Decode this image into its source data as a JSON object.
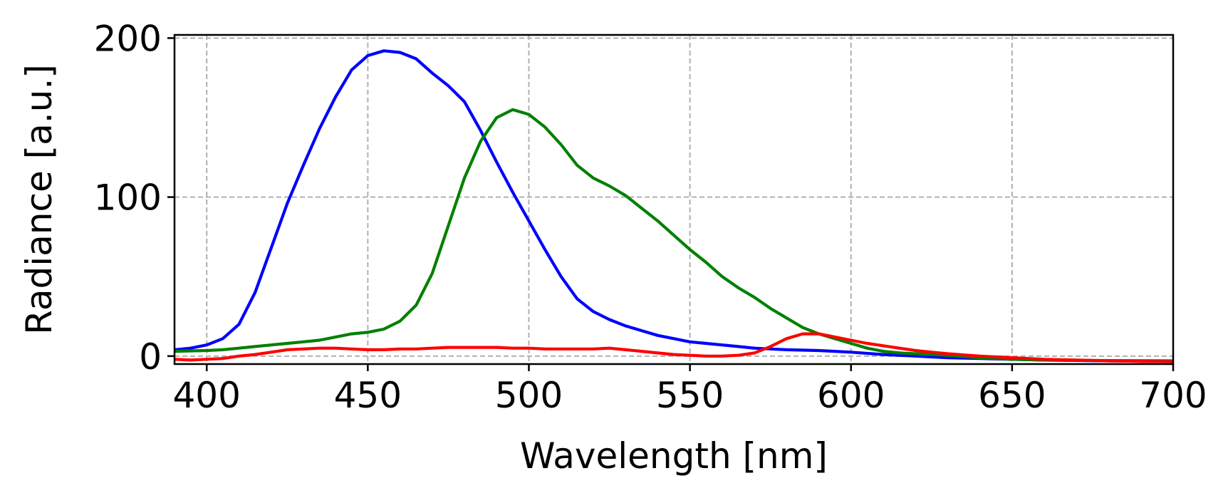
{
  "chart_data": {
    "type": "line",
    "title": "",
    "xlabel": "Wavelength [nm]",
    "ylabel": "Radiance [a.u.]",
    "xlim": [
      390,
      700
    ],
    "ylim": [
      -5,
      202
    ],
    "xticks": [
      400,
      450,
      500,
      550,
      600,
      650,
      700
    ],
    "yticks": [
      0,
      100,
      200
    ],
    "grid": true,
    "legend": "none",
    "series": [
      {
        "color": "#0000ff",
        "points": [
          [
            390,
            4
          ],
          [
            395,
            5
          ],
          [
            400,
            7
          ],
          [
            405,
            11
          ],
          [
            410,
            20
          ],
          [
            415,
            40
          ],
          [
            420,
            68
          ],
          [
            425,
            96
          ],
          [
            430,
            120
          ],
          [
            435,
            143
          ],
          [
            440,
            163
          ],
          [
            445,
            180
          ],
          [
            450,
            189
          ],
          [
            455,
            192
          ],
          [
            460,
            191
          ],
          [
            465,
            187
          ],
          [
            470,
            178
          ],
          [
            475,
            170
          ],
          [
            480,
            160
          ],
          [
            485,
            142
          ],
          [
            490,
            122
          ],
          [
            495,
            103
          ],
          [
            500,
            85
          ],
          [
            505,
            67
          ],
          [
            510,
            50
          ],
          [
            515,
            36
          ],
          [
            520,
            28
          ],
          [
            525,
            23
          ],
          [
            530,
            19
          ],
          [
            535,
            16
          ],
          [
            540,
            13
          ],
          [
            545,
            11
          ],
          [
            550,
            9
          ],
          [
            555,
            8
          ],
          [
            560,
            7
          ],
          [
            565,
            6
          ],
          [
            570,
            5
          ],
          [
            575,
            4.5
          ],
          [
            580,
            4
          ],
          [
            590,
            3.5
          ],
          [
            600,
            2.5
          ],
          [
            610,
            1
          ],
          [
            620,
            0
          ],
          [
            630,
            -1
          ],
          [
            640,
            -1.5
          ],
          [
            650,
            -2
          ],
          [
            660,
            -2.5
          ],
          [
            680,
            -3
          ],
          [
            700,
            -3.5
          ]
        ]
      },
      {
        "color": "#008000",
        "points": [
          [
            390,
            3
          ],
          [
            400,
            3.5
          ],
          [
            405,
            4
          ],
          [
            410,
            5
          ],
          [
            415,
            6
          ],
          [
            420,
            7
          ],
          [
            425,
            8
          ],
          [
            430,
            9
          ],
          [
            435,
            10
          ],
          [
            440,
            12
          ],
          [
            445,
            14
          ],
          [
            450,
            15
          ],
          [
            455,
            17
          ],
          [
            460,
            22
          ],
          [
            465,
            32
          ],
          [
            470,
            52
          ],
          [
            475,
            82
          ],
          [
            480,
            112
          ],
          [
            485,
            135
          ],
          [
            490,
            150
          ],
          [
            495,
            155
          ],
          [
            500,
            152
          ],
          [
            505,
            144
          ],
          [
            510,
            133
          ],
          [
            515,
            120
          ],
          [
            520,
            112
          ],
          [
            525,
            107
          ],
          [
            530,
            101
          ],
          [
            535,
            93
          ],
          [
            540,
            85
          ],
          [
            545,
            76
          ],
          [
            550,
            67
          ],
          [
            555,
            59
          ],
          [
            560,
            50
          ],
          [
            565,
            43
          ],
          [
            570,
            37
          ],
          [
            575,
            30
          ],
          [
            580,
            24
          ],
          [
            585,
            18
          ],
          [
            590,
            14
          ],
          [
            595,
            11
          ],
          [
            600,
            8
          ],
          [
            605,
            5
          ],
          [
            610,
            3
          ],
          [
            615,
            2
          ],
          [
            620,
            1.5
          ],
          [
            625,
            1
          ],
          [
            630,
            0.5
          ],
          [
            640,
            -1
          ],
          [
            650,
            -2
          ],
          [
            660,
            -2.5
          ],
          [
            680,
            -2.8
          ],
          [
            700,
            -3
          ]
        ]
      },
      {
        "color": "#ff0000",
        "points": [
          [
            390,
            -2
          ],
          [
            395,
            -2.5
          ],
          [
            400,
            -2
          ],
          [
            405,
            -1.5
          ],
          [
            410,
            0
          ],
          [
            415,
            1
          ],
          [
            420,
            2.5
          ],
          [
            425,
            4
          ],
          [
            430,
            4.5
          ],
          [
            435,
            5
          ],
          [
            440,
            5
          ],
          [
            445,
            4.5
          ],
          [
            450,
            4
          ],
          [
            455,
            4
          ],
          [
            460,
            4.5
          ],
          [
            465,
            4.5
          ],
          [
            470,
            5
          ],
          [
            475,
            5.5
          ],
          [
            480,
            5.5
          ],
          [
            485,
            5.5
          ],
          [
            490,
            5.5
          ],
          [
            495,
            5
          ],
          [
            500,
            5
          ],
          [
            505,
            4.5
          ],
          [
            510,
            4.5
          ],
          [
            515,
            4.5
          ],
          [
            520,
            4.5
          ],
          [
            525,
            5
          ],
          [
            530,
            4
          ],
          [
            535,
            3
          ],
          [
            540,
            2
          ],
          [
            545,
            1
          ],
          [
            550,
            0.5
          ],
          [
            555,
            0
          ],
          [
            560,
            0
          ],
          [
            565,
            0.5
          ],
          [
            570,
            2
          ],
          [
            575,
            6
          ],
          [
            580,
            11
          ],
          [
            585,
            14
          ],
          [
            590,
            14
          ],
          [
            595,
            12
          ],
          [
            600,
            10
          ],
          [
            605,
            8
          ],
          [
            610,
            6.5
          ],
          [
            615,
            5
          ],
          [
            620,
            3.5
          ],
          [
            625,
            2.5
          ],
          [
            630,
            1.5
          ],
          [
            640,
            0
          ],
          [
            650,
            -1
          ],
          [
            660,
            -2
          ],
          [
            680,
            -3
          ],
          [
            700,
            -3.5
          ]
        ]
      }
    ]
  }
}
